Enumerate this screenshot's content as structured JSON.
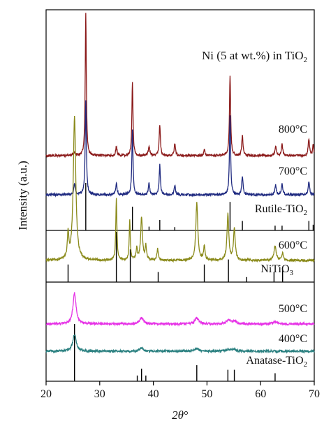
{
  "chart_data": {
    "type": "line",
    "title": "Ni (5 at wt.%) in TiO2",
    "title_main": "Ni (5 at wt.%) in TiO",
    "title_sub": "2",
    "xlabel_main": "2θ",
    "xlabel_sup": "°",
    "ylabel": "Intensity (a.u.)",
    "xlim": [
      20,
      70
    ],
    "x_ticks": [
      20,
      30,
      40,
      50,
      60,
      70
    ],
    "x_tick_labels": [
      "20",
      "30",
      "40",
      "50",
      "60",
      "70"
    ],
    "grid": false,
    "colors": {
      "s800": "#8b1a1a",
      "s700": "#1f2a80",
      "s600": "#8a8a1a",
      "s500": "#e632e6",
      "s400": "#2a8080",
      "ref": "#000000"
    },
    "panels": [
      {
        "name": "panel-top",
        "series": [
          {
            "label": "800°C",
            "color_key": "s800",
            "baseline": 0.0,
            "peaks": [
              {
                "x": 25.3,
                "h": 0.02,
                "w": 0.3
              },
              {
                "x": 27.4,
                "h": 1.0,
                "w": 0.12
              },
              {
                "x": 33.1,
                "h": 0.06,
                "w": 0.15
              },
              {
                "x": 36.1,
                "h": 0.52,
                "w": 0.12
              },
              {
                "x": 39.2,
                "h": 0.07,
                "w": 0.15
              },
              {
                "x": 41.2,
                "h": 0.22,
                "w": 0.13
              },
              {
                "x": 44.0,
                "h": 0.08,
                "w": 0.15
              },
              {
                "x": 49.5,
                "h": 0.04,
                "w": 0.15
              },
              {
                "x": 54.3,
                "h": 0.56,
                "w": 0.13
              },
              {
                "x": 56.6,
                "h": 0.14,
                "w": 0.14
              },
              {
                "x": 62.8,
                "h": 0.07,
                "w": 0.15
              },
              {
                "x": 64.0,
                "h": 0.08,
                "w": 0.15
              },
              {
                "x": 69.0,
                "h": 0.12,
                "w": 0.15
              },
              {
                "x": 69.8,
                "h": 0.08,
                "w": 0.12
              }
            ]
          },
          {
            "label": "700°C",
            "color_key": "s700",
            "baseline": 0.0,
            "peaks": [
              {
                "x": 25.3,
                "h": 0.06,
                "w": 0.15
              },
              {
                "x": 27.4,
                "h": 0.5,
                "w": 0.13
              },
              {
                "x": 33.1,
                "h": 0.06,
                "w": 0.15
              },
              {
                "x": 36.1,
                "h": 0.34,
                "w": 0.13
              },
              {
                "x": 39.2,
                "h": 0.06,
                "w": 0.15
              },
              {
                "x": 41.2,
                "h": 0.16,
                "w": 0.13
              },
              {
                "x": 44.0,
                "h": 0.05,
                "w": 0.15
              },
              {
                "x": 54.3,
                "h": 0.42,
                "w": 0.13
              },
              {
                "x": 56.6,
                "h": 0.1,
                "w": 0.14
              },
              {
                "x": 62.8,
                "h": 0.05,
                "w": 0.15
              },
              {
                "x": 64.0,
                "h": 0.06,
                "w": 0.15
              },
              {
                "x": 69.0,
                "h": 0.07,
                "w": 0.15
              }
            ]
          }
        ],
        "reference": {
          "label_main": "Rutile-TiO",
          "label_sub": "2",
          "lines": [
            {
              "x": 27.4,
              "h": 1.0
            },
            {
              "x": 36.1,
              "h": 0.5
            },
            {
              "x": 39.2,
              "h": 0.08
            },
            {
              "x": 41.2,
              "h": 0.22
            },
            {
              "x": 44.0,
              "h": 0.07
            },
            {
              "x": 54.3,
              "h": 0.6
            },
            {
              "x": 56.6,
              "h": 0.2
            },
            {
              "x": 62.7,
              "h": 0.1
            },
            {
              "x": 64.0,
              "h": 0.1
            },
            {
              "x": 69.0,
              "h": 0.2
            },
            {
              "x": 69.8,
              "h": 0.12
            }
          ]
        }
      },
      {
        "name": "panel-middle",
        "series": [
          {
            "label": "600°C",
            "color_key": "s600",
            "baseline": 0.0,
            "peaks": [
              {
                "x": 24.1,
                "h": 0.18,
                "w": 0.15
              },
              {
                "x": 25.3,
                "h": 1.0,
                "w": 0.28
              },
              {
                "x": 33.1,
                "h": 0.44,
                "w": 0.12
              },
              {
                "x": 35.6,
                "h": 0.28,
                "w": 0.12
              },
              {
                "x": 36.9,
                "h": 0.08,
                "w": 0.15
              },
              {
                "x": 37.8,
                "h": 0.3,
                "w": 0.2
              },
              {
                "x": 38.6,
                "h": 0.1,
                "w": 0.15
              },
              {
                "x": 40.8,
                "h": 0.08,
                "w": 0.15
              },
              {
                "x": 48.1,
                "h": 0.4,
                "w": 0.22
              },
              {
                "x": 49.5,
                "h": 0.1,
                "w": 0.15
              },
              {
                "x": 53.9,
                "h": 0.32,
                "w": 0.2
              },
              {
                "x": 55.1,
                "h": 0.22,
                "w": 0.2
              },
              {
                "x": 62.7,
                "h": 0.1,
                "w": 0.25
              },
              {
                "x": 64.1,
                "h": 0.05,
                "w": 0.15
              }
            ]
          }
        ],
        "reference": {
          "label_main": "NiTiO",
          "label_sub": "3",
          "lines": [
            {
              "x": 24.1,
              "h": 0.35
            },
            {
              "x": 33.1,
              "h": 1.0
            },
            {
              "x": 35.7,
              "h": 0.65
            },
            {
              "x": 40.9,
              "h": 0.2
            },
            {
              "x": 49.5,
              "h": 0.35
            },
            {
              "x": 54.0,
              "h": 0.45
            },
            {
              "x": 57.4,
              "h": 0.1
            },
            {
              "x": 62.5,
              "h": 0.2
            },
            {
              "x": 64.1,
              "h": 0.25
            }
          ]
        }
      },
      {
        "name": "panel-bottom",
        "series": [
          {
            "label": "500°C",
            "color_key": "s500",
            "baseline": 0.0,
            "peaks": [
              {
                "x": 25.3,
                "h": 1.0,
                "w": 0.35
              },
              {
                "x": 37.8,
                "h": 0.2,
                "w": 0.45
              },
              {
                "x": 48.1,
                "h": 0.2,
                "w": 0.4
              },
              {
                "x": 54.0,
                "h": 0.12,
                "w": 0.45
              },
              {
                "x": 55.1,
                "h": 0.1,
                "w": 0.4
              },
              {
                "x": 62.7,
                "h": 0.07,
                "w": 0.45
              }
            ]
          },
          {
            "label": "400°C",
            "color_key": "s400",
            "baseline": 0.0,
            "peaks": [
              {
                "x": 25.3,
                "h": 0.55,
                "w": 0.38
              },
              {
                "x": 37.8,
                "h": 0.1,
                "w": 0.45
              },
              {
                "x": 48.1,
                "h": 0.1,
                "w": 0.45
              },
              {
                "x": 54.0,
                "h": 0.06,
                "w": 0.45
              },
              {
                "x": 55.1,
                "h": 0.05,
                "w": 0.45
              }
            ]
          }
        ],
        "reference": {
          "label_main": "Anatase-TiO",
          "label_sub": "2",
          "lines": [
            {
              "x": 25.3,
              "h": 1.0
            },
            {
              "x": 37.0,
              "h": 0.1
            },
            {
              "x": 37.8,
              "h": 0.22
            },
            {
              "x": 38.6,
              "h": 0.1
            },
            {
              "x": 48.1,
              "h": 0.28
            },
            {
              "x": 53.9,
              "h": 0.2
            },
            {
              "x": 55.1,
              "h": 0.2
            },
            {
              "x": 62.7,
              "h": 0.14
            }
          ]
        }
      }
    ]
  }
}
